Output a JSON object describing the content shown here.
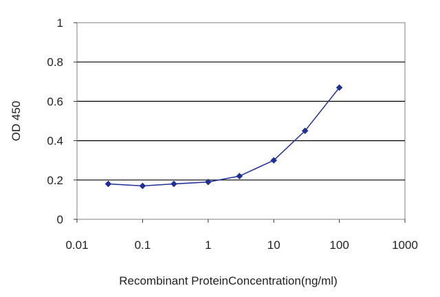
{
  "chart_data": {
    "type": "line",
    "title": "",
    "xlabel": "Recombinant ProteinConcentration(ng/ml)",
    "ylabel": "OD 450",
    "x_scale": "log",
    "xlim": [
      0.01,
      1000
    ],
    "ylim": [
      0,
      1
    ],
    "x_ticks": [
      0.01,
      0.1,
      1,
      10,
      100,
      1000
    ],
    "x_tick_labels": [
      "0.01",
      "0.1",
      "1",
      "10",
      "100",
      "1000"
    ],
    "y_ticks": [
      0,
      0.2,
      0.4,
      0.6,
      0.8,
      1
    ],
    "y_tick_labels": [
      "0",
      "0.2",
      "0.4",
      "0.6",
      "0.8",
      "1"
    ],
    "grid": "horizontal",
    "legend": "none",
    "series": [
      {
        "color": "#1f2f9a",
        "marker": "diamond",
        "x": [
          0.03,
          0.1,
          0.3,
          1,
          3,
          10,
          30,
          100
        ],
        "y": [
          0.18,
          0.17,
          0.18,
          0.19,
          0.22,
          0.3,
          0.45,
          0.67
        ]
      }
    ]
  }
}
